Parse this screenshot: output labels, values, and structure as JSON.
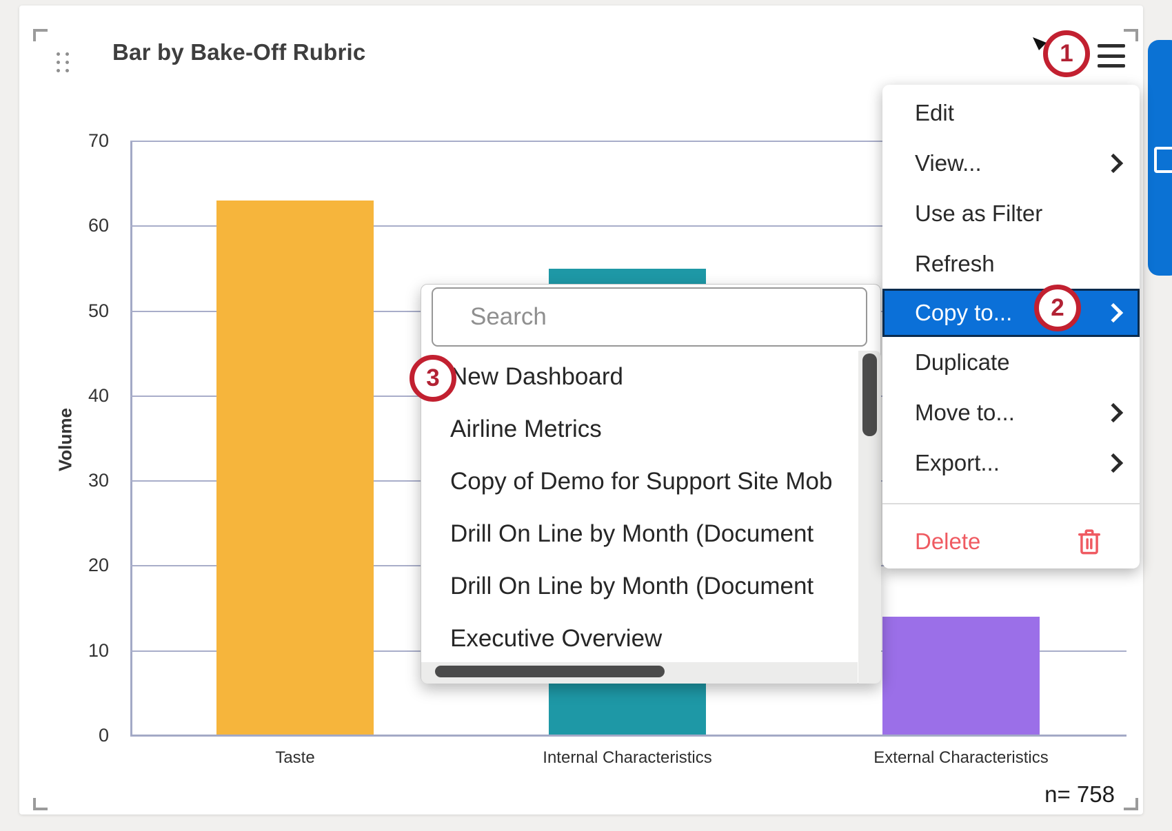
{
  "widget": {
    "title": "Bar by Bake-Off Rubric",
    "sample_size_label": "n= 758"
  },
  "chart_data": {
    "type": "bar",
    "title": "Bar by Bake-Off Rubric",
    "categories": [
      "Taste",
      "Internal Characteristics",
      "External Characteristics"
    ],
    "values": [
      63,
      55,
      14
    ],
    "bar_colors": [
      "#f6b53c",
      "#1e98a6",
      "#9b6fe8"
    ],
    "xlabel": "",
    "ylabel": "Volume",
    "ylim": [
      0,
      70
    ],
    "ytick_step": 10,
    "grid": "horizontal",
    "legend": "none",
    "sample_size": "n= 758"
  },
  "context_menu": {
    "items": [
      {
        "label": "Edit",
        "chevron": false,
        "highlighted": false
      },
      {
        "label": "View...",
        "chevron": true,
        "highlighted": false
      },
      {
        "label": "Use as Filter",
        "chevron": false,
        "highlighted": false
      },
      {
        "label": "Refresh",
        "chevron": false,
        "highlighted": false
      },
      {
        "label": "Copy to...",
        "chevron": true,
        "highlighted": true
      },
      {
        "label": "Duplicate",
        "chevron": false,
        "highlighted": false
      },
      {
        "label": "Move to...",
        "chevron": true,
        "highlighted": false
      },
      {
        "label": "Export...",
        "chevron": true,
        "highlighted": false
      }
    ],
    "delete_label": "Delete",
    "delete_icon": "trash-icon",
    "highlight_color": "#0b70d8",
    "highlight_border": "#0a2b4e",
    "delete_color": "#ef5a61"
  },
  "submenu": {
    "search_placeholder": "Search",
    "items": [
      "New Dashboard",
      "Airline Metrics",
      "Copy of Demo for Support Site Mob",
      "Drill On Line by Month (Document",
      "Drill On Line by Month (Document",
      "Executive Overview"
    ]
  },
  "annotations": {
    "circle_1": "1",
    "circle_2": "2",
    "circle_3": "3",
    "color": "#c22030"
  },
  "colors": {
    "gridline": "#a8adc9",
    "page_background": "#f1f0ee",
    "side_tab_blue": "#0b72d4"
  }
}
